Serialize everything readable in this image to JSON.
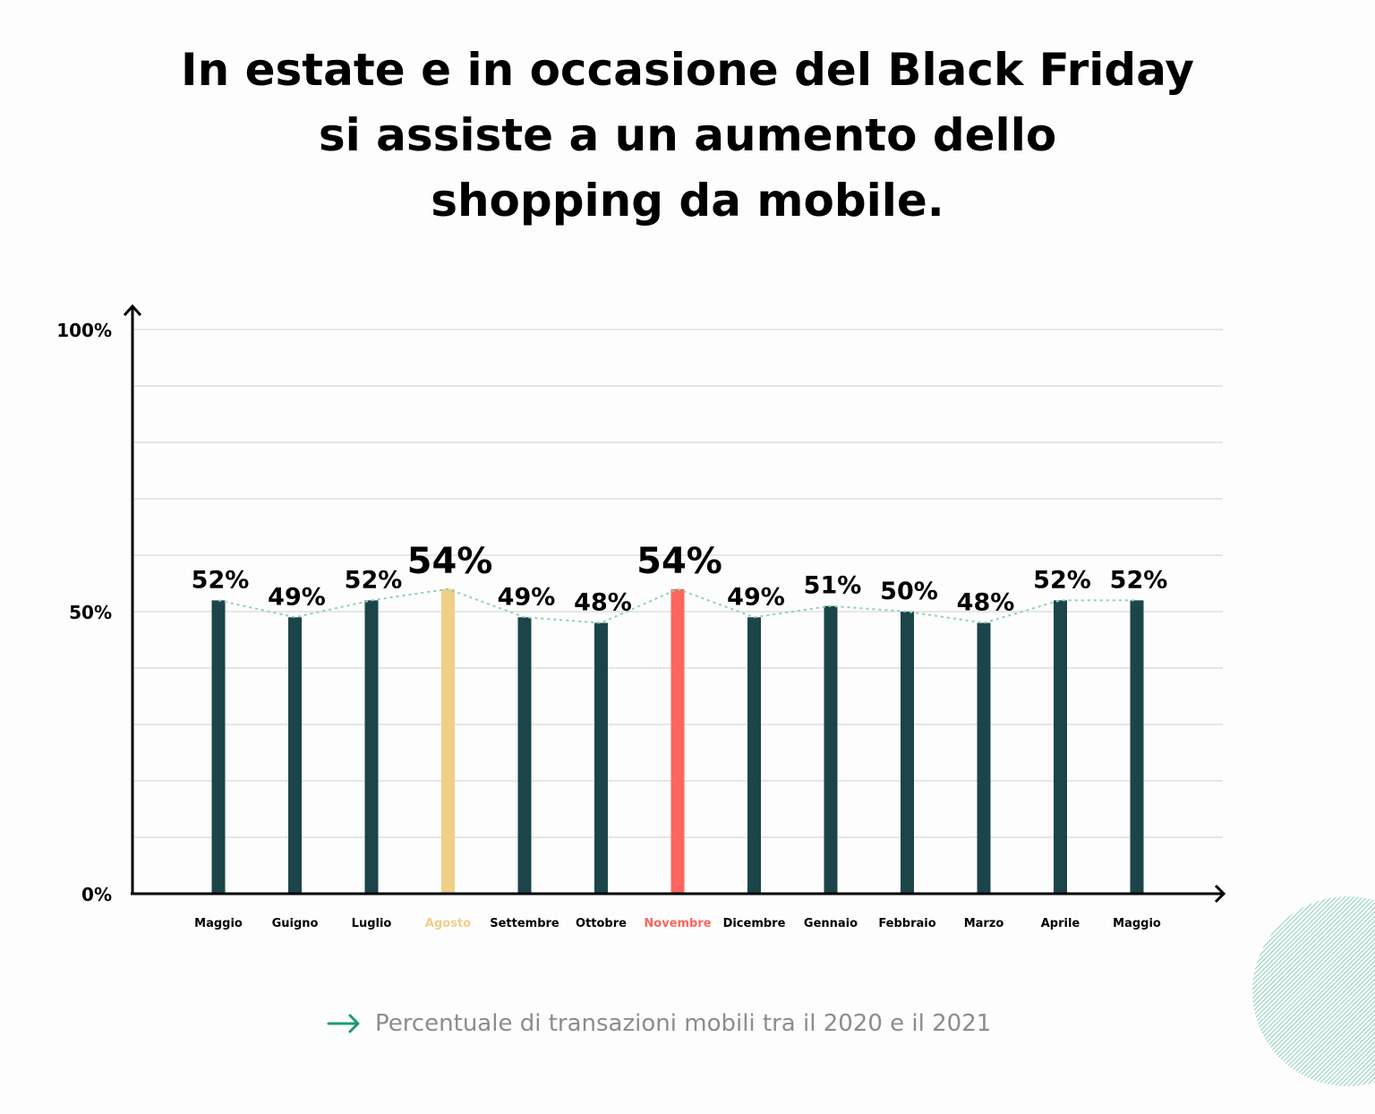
{
  "title": {
    "line1": "In estate e in occasione del Black Friday",
    "line2": "si assiste a un aumento dello",
    "line3": "shopping da mobile."
  },
  "caption": "Percentuale di transazioni mobili tra il 2020 e il 2021",
  "colors": {
    "bar": "#1c4549",
    "highlight_summer": "#f0cf88",
    "highlight_black_friday": "#fc665e",
    "trend_line": "#8fd0b6",
    "caption_arrow": "#1e9c6a",
    "grid": "#e6e6e6",
    "axis": "#000000"
  },
  "chart_data": {
    "type": "bar",
    "categories": [
      "Maggio",
      "Guigno",
      "Luglio",
      "Agosto",
      "Settembre",
      "Ottobre",
      "Novembre",
      "Dicembre",
      "Gennaio",
      "Febbraio",
      "Marzo",
      "Aprile",
      "Maggio"
    ],
    "values": [
      52,
      49,
      52,
      54,
      49,
      48,
      54,
      49,
      51,
      50,
      48,
      52,
      52
    ],
    "data_labels": [
      "52%",
      "49%",
      "52%",
      "54%",
      "49%",
      "48%",
      "54%",
      "49%",
      "51%",
      "50%",
      "48%",
      "52%",
      "52%"
    ],
    "highlights": {
      "Agosto": "summer",
      "Novembre": "black_friday"
    },
    "ylim": [
      0,
      100
    ],
    "y_tick_labels": [
      {
        "value": 0,
        "label": "0%"
      },
      {
        "value": 50,
        "label": "50%"
      },
      {
        "value": 100,
        "label": "100%"
      }
    ],
    "trend_line": "dotted",
    "grid": true
  }
}
